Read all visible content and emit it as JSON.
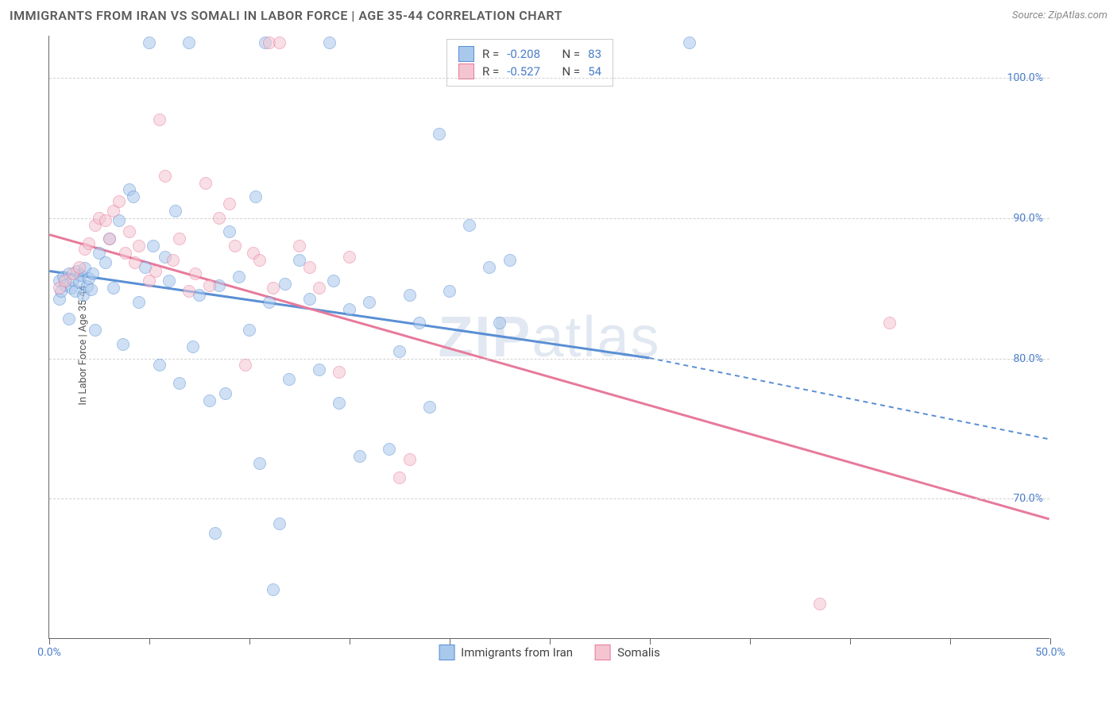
{
  "header": {
    "title": "IMMIGRANTS FROM IRAN VS SOMALI IN LABOR FORCE | AGE 35-44 CORRELATION CHART",
    "source": "Source: ZipAtlas.com"
  },
  "chart": {
    "type": "scatter",
    "y_axis_title": "In Labor Force | Age 35-44",
    "xlim": [
      0,
      50
    ],
    "ylim": [
      60,
      103
    ],
    "x_ticks": [
      0,
      5,
      10,
      15,
      20,
      25,
      30,
      35,
      40,
      45,
      50
    ],
    "x_tick_labels": {
      "0": "0.0%",
      "50": "50.0%"
    },
    "y_gridlines": [
      70,
      80,
      90,
      100
    ],
    "y_tick_labels": {
      "70": "70.0%",
      "80": "80.0%",
      "90": "90.0%",
      "100": "100.0%"
    },
    "background_color": "#ffffff",
    "grid_color": "#d0d0d0",
    "axis_color": "#666666",
    "label_color": "#4a7ec9",
    "marker_radius": 8,
    "marker_opacity": 0.55,
    "watermark": "ZIPatlas",
    "series": [
      {
        "name": "Immigrants from Iran",
        "color_fill": "#a8c8ec",
        "color_stroke": "#5a8fd4",
        "r_value": "-0.208",
        "n_value": "83",
        "trend": {
          "y_start": 86.2,
          "y_end_solid": 80.0,
          "x_end_solid": 30,
          "y_end_dash": 74.2,
          "dash_after": 30
        },
        "points": [
          [
            0.5,
            85.5
          ],
          [
            0.7,
            85.8
          ],
          [
            0.8,
            85.2
          ],
          [
            1.0,
            86.0
          ],
          [
            1.1,
            85.0
          ],
          [
            1.2,
            85.6
          ],
          [
            1.3,
            84.8
          ],
          [
            1.4,
            86.2
          ],
          [
            1.5,
            85.4
          ],
          [
            1.6,
            85.9
          ],
          [
            1.7,
            84.5
          ],
          [
            1.8,
            86.4
          ],
          [
            1.9,
            85.1
          ],
          [
            2.0,
            85.7
          ],
          [
            2.1,
            84.9
          ],
          [
            2.2,
            86.0
          ],
          [
            0.5,
            84.2
          ],
          [
            0.6,
            84.8
          ],
          [
            1.0,
            82.8
          ],
          [
            2.3,
            82.0
          ],
          [
            2.5,
            87.5
          ],
          [
            2.8,
            86.8
          ],
          [
            3.0,
            88.5
          ],
          [
            3.2,
            85.0
          ],
          [
            3.5,
            89.8
          ],
          [
            3.7,
            81.0
          ],
          [
            4.0,
            92.0
          ],
          [
            4.2,
            91.5
          ],
          [
            4.5,
            84.0
          ],
          [
            4.8,
            86.5
          ],
          [
            5.0,
            102.5
          ],
          [
            5.2,
            88.0
          ],
          [
            5.5,
            79.5
          ],
          [
            5.8,
            87.2
          ],
          [
            6.0,
            85.5
          ],
          [
            6.3,
            90.5
          ],
          [
            6.5,
            78.2
          ],
          [
            7.0,
            102.5
          ],
          [
            7.2,
            80.8
          ],
          [
            7.5,
            84.5
          ],
          [
            8.0,
            77.0
          ],
          [
            8.3,
            67.5
          ],
          [
            8.5,
            85.2
          ],
          [
            8.8,
            77.5
          ],
          [
            9.0,
            89.0
          ],
          [
            9.5,
            85.8
          ],
          [
            10.0,
            82.0
          ],
          [
            10.3,
            91.5
          ],
          [
            10.5,
            72.5
          ],
          [
            10.8,
            102.5
          ],
          [
            11.0,
            84.0
          ],
          [
            11.2,
            63.5
          ],
          [
            11.5,
            68.2
          ],
          [
            11.8,
            85.3
          ],
          [
            12.0,
            78.5
          ],
          [
            12.5,
            87.0
          ],
          [
            13.0,
            84.2
          ],
          [
            13.5,
            79.2
          ],
          [
            14.0,
            102.5
          ],
          [
            14.2,
            85.5
          ],
          [
            14.5,
            76.8
          ],
          [
            15.0,
            83.5
          ],
          [
            15.5,
            73.0
          ],
          [
            16.0,
            84.0
          ],
          [
            17.0,
            73.5
          ],
          [
            17.5,
            80.5
          ],
          [
            18.0,
            84.5
          ],
          [
            18.5,
            82.5
          ],
          [
            19.0,
            76.5
          ],
          [
            19.5,
            96.0
          ],
          [
            20.0,
            84.8
          ],
          [
            21.0,
            89.5
          ],
          [
            22.0,
            86.5
          ],
          [
            22.5,
            82.5
          ],
          [
            23.0,
            87.0
          ],
          [
            32.0,
            102.5
          ]
        ]
      },
      {
        "name": "Somalis",
        "color_fill": "#f4c4d0",
        "color_stroke": "#e77a9b",
        "r_value": "-0.527",
        "n_value": "54",
        "trend": {
          "y_start": 88.8,
          "y_end_solid": 68.5,
          "x_end_solid": 50,
          "y_end_dash": 68.5,
          "dash_after": 50
        },
        "points": [
          [
            0.5,
            85.0
          ],
          [
            0.8,
            85.5
          ],
          [
            1.2,
            86.0
          ],
          [
            1.5,
            86.5
          ],
          [
            1.8,
            87.8
          ],
          [
            2.0,
            88.2
          ],
          [
            2.3,
            89.5
          ],
          [
            2.5,
            90.0
          ],
          [
            2.8,
            89.8
          ],
          [
            3.0,
            88.5
          ],
          [
            3.2,
            90.5
          ],
          [
            3.5,
            91.2
          ],
          [
            3.8,
            87.5
          ],
          [
            4.0,
            89.0
          ],
          [
            4.3,
            86.8
          ],
          [
            4.5,
            88.0
          ],
          [
            5.0,
            85.5
          ],
          [
            5.3,
            86.2
          ],
          [
            5.5,
            97.0
          ],
          [
            5.8,
            93.0
          ],
          [
            6.2,
            87.0
          ],
          [
            6.5,
            88.5
          ],
          [
            7.0,
            84.8
          ],
          [
            7.3,
            86.0
          ],
          [
            7.8,
            92.5
          ],
          [
            8.0,
            85.2
          ],
          [
            8.5,
            90.0
          ],
          [
            9.0,
            91.0
          ],
          [
            9.3,
            88.0
          ],
          [
            9.8,
            79.5
          ],
          [
            10.2,
            87.5
          ],
          [
            10.5,
            87.0
          ],
          [
            11.0,
            102.5
          ],
          [
            11.2,
            85.0
          ],
          [
            11.5,
            102.5
          ],
          [
            12.5,
            88.0
          ],
          [
            13.0,
            86.5
          ],
          [
            13.5,
            85.0
          ],
          [
            14.5,
            79.0
          ],
          [
            15.0,
            87.2
          ],
          [
            17.5,
            71.5
          ],
          [
            18.0,
            72.8
          ],
          [
            38.5,
            62.5
          ],
          [
            42.0,
            82.5
          ]
        ]
      }
    ],
    "stats_box": {
      "r_label": "R =",
      "n_label": "N ="
    },
    "bottom_legend": [
      {
        "label": "Immigrants from Iran",
        "fill": "#a8c8ec",
        "stroke": "#5a8fd4"
      },
      {
        "label": "Somalis",
        "fill": "#f4c4d0",
        "stroke": "#e77a9b"
      }
    ]
  }
}
